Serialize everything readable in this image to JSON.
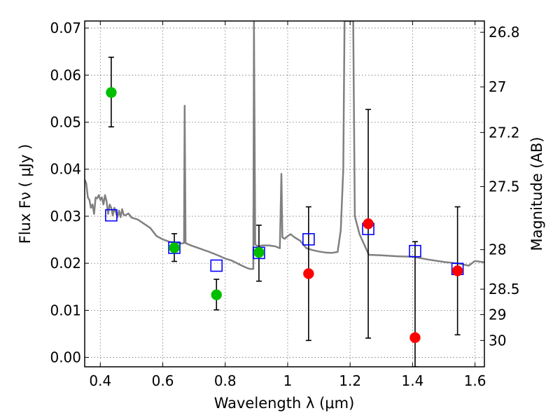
{
  "chart_data": {
    "type": "scatter",
    "xlabel": "Wavelength  λ (μm)",
    "ylabel": "Flux  Fν ( μJy )",
    "right_ylabel": "Magnitude (AB)",
    "xlim": [
      0.35,
      1.63
    ],
    "ylim": [
      -0.002,
      0.0715
    ],
    "grid": true,
    "x_ticks": [
      {
        "value": 0.4,
        "label": "0.4"
      },
      {
        "value": 0.6,
        "label": "0.6"
      },
      {
        "value": 0.8,
        "label": "0.8"
      },
      {
        "value": 1.0,
        "label": "1"
      },
      {
        "value": 1.2,
        "label": "1.2"
      },
      {
        "value": 1.4,
        "label": "1.4"
      },
      {
        "value": 1.6,
        "label": "1.6"
      }
    ],
    "y_ticks": [
      {
        "value": 0.0,
        "label": "0.00"
      },
      {
        "value": 0.01,
        "label": "0.01"
      },
      {
        "value": 0.02,
        "label": "0.02"
      },
      {
        "value": 0.03,
        "label": "0.03"
      },
      {
        "value": 0.04,
        "label": "0.04"
      },
      {
        "value": 0.05,
        "label": "0.05"
      },
      {
        "value": 0.06,
        "label": "0.06"
      },
      {
        "value": 0.07,
        "label": "0.07"
      }
    ],
    "right_ticks": [
      {
        "label": "26.8",
        "flux": 0.0691
      },
      {
        "label": "27",
        "flux": 0.0575
      },
      {
        "label": "27.2",
        "flux": 0.0478
      },
      {
        "label": "27.5",
        "flux": 0.0363
      },
      {
        "label": "28",
        "flux": 0.0229
      },
      {
        "label": "28.5",
        "flux": 0.0145
      },
      {
        "label": "29",
        "flux": 0.0091
      },
      {
        "label": "30",
        "flux": 0.0036
      }
    ],
    "series": [
      {
        "type": "line",
        "color": "#808080",
        "points": [
          [
            0.35,
            0.0378
          ],
          [
            0.355,
            0.037
          ],
          [
            0.36,
            0.034
          ],
          [
            0.365,
            0.0335
          ],
          [
            0.37,
            0.0318
          ],
          [
            0.375,
            0.0325
          ],
          [
            0.38,
            0.0305
          ],
          [
            0.385,
            0.034
          ],
          [
            0.39,
            0.0338
          ],
          [
            0.395,
            0.0345
          ],
          [
            0.4,
            0.0335
          ],
          [
            0.405,
            0.034
          ],
          [
            0.41,
            0.0325
          ],
          [
            0.415,
            0.0345
          ],
          [
            0.42,
            0.0332
          ],
          [
            0.425,
            0.0305
          ],
          [
            0.43,
            0.0325
          ],
          [
            0.435,
            0.0318
          ],
          [
            0.44,
            0.0302
          ],
          [
            0.445,
            0.0318
          ],
          [
            0.45,
            0.0308
          ],
          [
            0.455,
            0.0298
          ],
          [
            0.46,
            0.0312
          ],
          [
            0.465,
            0.0298
          ],
          [
            0.47,
            0.0315
          ],
          [
            0.475,
            0.0303
          ],
          [
            0.48,
            0.0302
          ],
          [
            0.49,
            0.0306
          ],
          [
            0.5,
            0.0297
          ],
          [
            0.52,
            0.0293
          ],
          [
            0.54,
            0.0284
          ],
          [
            0.56,
            0.0275
          ],
          [
            0.58,
            0.0258
          ],
          [
            0.6,
            0.0251
          ],
          [
            0.62,
            0.0246
          ],
          [
            0.64,
            0.0244
          ],
          [
            0.66,
            0.0242
          ],
          [
            0.668,
            0.0243
          ],
          [
            0.67,
            0.0535
          ],
          [
            0.673,
            0.0243
          ],
          [
            0.69,
            0.0238
          ],
          [
            0.72,
            0.0231
          ],
          [
            0.75,
            0.0224
          ],
          [
            0.78,
            0.0216
          ],
          [
            0.8,
            0.021
          ],
          [
            0.82,
            0.0206
          ],
          [
            0.85,
            0.0196
          ],
          [
            0.87,
            0.019
          ],
          [
            0.88,
            0.0188
          ],
          [
            0.89,
            0.0188
          ],
          [
            0.892,
            0.0715
          ],
          [
            0.896,
            0.024
          ],
          [
            0.905,
            0.0236
          ],
          [
            0.92,
            0.0238
          ],
          [
            0.94,
            0.0238
          ],
          [
            0.96,
            0.0236
          ],
          [
            0.975,
            0.0232
          ],
          [
            0.98,
            0.039
          ],
          [
            0.983,
            0.0255
          ],
          [
            0.99,
            0.0252
          ],
          [
            1.0,
            0.0258
          ],
          [
            1.01,
            0.0262
          ],
          [
            1.02,
            0.0256
          ],
          [
            1.04,
            0.0248
          ],
          [
            1.06,
            0.0232
          ],
          [
            1.08,
            0.0228
          ],
          [
            1.1,
            0.0225
          ],
          [
            1.12,
            0.0223
          ],
          [
            1.14,
            0.0222
          ],
          [
            1.16,
            0.0224
          ],
          [
            1.17,
            0.027
          ],
          [
            1.178,
            0.04
          ],
          [
            1.182,
            0.0715
          ],
          [
            1.21,
            0.0715
          ],
          [
            1.215,
            0.03
          ],
          [
            1.23,
            0.0262
          ],
          [
            1.26,
            0.0218
          ],
          [
            1.3,
            0.0217
          ],
          [
            1.35,
            0.0215
          ],
          [
            1.4,
            0.0214
          ],
          [
            1.45,
            0.0208
          ],
          [
            1.5,
            0.0203
          ],
          [
            1.55,
            0.0199
          ],
          [
            1.58,
            0.0195
          ],
          [
            1.6,
            0.0205
          ],
          [
            1.63,
            0.0202
          ]
        ]
      },
      {
        "type": "errorbar",
        "marker": "circle",
        "color": "#00bf00",
        "points": [
          {
            "x": 0.435,
            "y": 0.0563,
            "ylow": 0.049,
            "yhigh": 0.0638
          },
          {
            "x": 0.637,
            "y": 0.0233,
            "ylow": 0.0204,
            "yhigh": 0.0263
          },
          {
            "x": 0.772,
            "y": 0.0133,
            "ylow": 0.0101,
            "yhigh": 0.0166
          },
          {
            "x": 0.908,
            "y": 0.0223,
            "ylow": 0.0162,
            "yhigh": 0.0281
          }
        ]
      },
      {
        "type": "errorbar",
        "marker": "circle",
        "color": "#ff0000",
        "points": [
          {
            "x": 1.067,
            "y": 0.0178,
            "ylow": 0.0036,
            "yhigh": 0.032
          },
          {
            "x": 1.258,
            "y": 0.0284,
            "ylow": 0.0041,
            "yhigh": 0.0527
          },
          {
            "x": 1.408,
            "y": 0.0042,
            "ylow": -0.002,
            "yhigh": 0.0246
          },
          {
            "x": 1.544,
            "y": 0.0184,
            "ylow": 0.0048,
            "yhigh": 0.032
          }
        ]
      },
      {
        "type": "scatter",
        "marker": "open-square",
        "color": "#0000ff",
        "points": [
          {
            "x": 0.435,
            "y": 0.0302
          },
          {
            "x": 0.637,
            "y": 0.0233
          },
          {
            "x": 0.772,
            "y": 0.0195
          },
          {
            "x": 0.908,
            "y": 0.0222
          },
          {
            "x": 1.067,
            "y": 0.0251
          },
          {
            "x": 1.258,
            "y": 0.0273
          },
          {
            "x": 1.408,
            "y": 0.0226
          },
          {
            "x": 1.544,
            "y": 0.0188
          }
        ]
      }
    ]
  }
}
